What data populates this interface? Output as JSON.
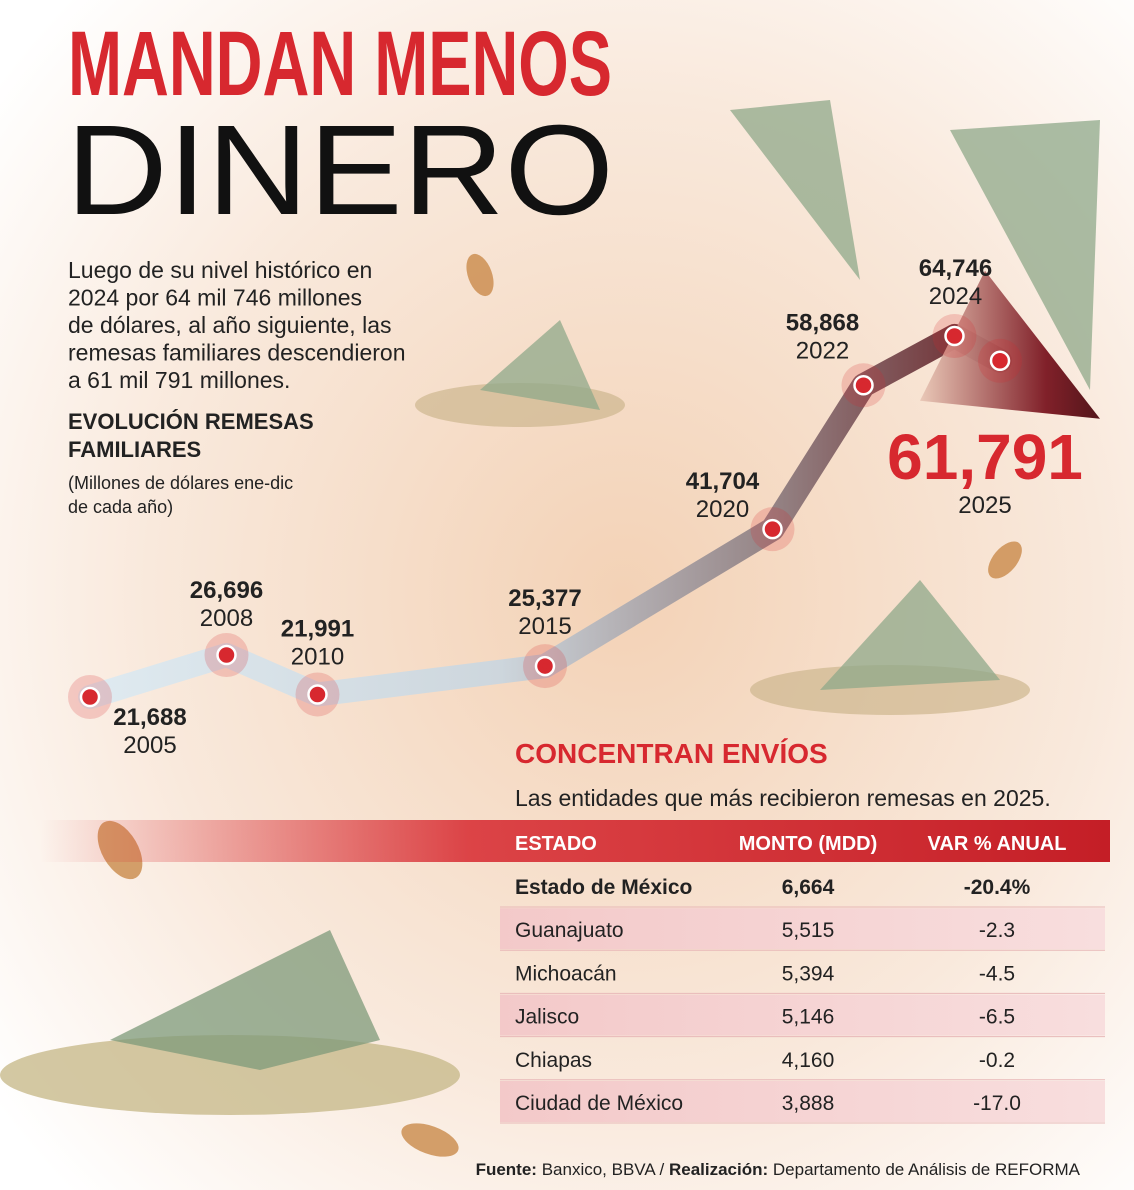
{
  "header": {
    "title": "MANDAN MENOS",
    "subtitle": "DINERO",
    "intro": [
      "Luego de su nivel histórico en",
      "2024 por 64 mil 746 millones",
      "de dólares, al año siguiente, las",
      "remesas familiares descendieron",
      "a 61 mil 791 millones."
    ]
  },
  "chart_data": {
    "type": "line",
    "title": [
      "EVOLUCIÓN REMESAS",
      "FAMILIARES"
    ],
    "note": [
      "(Millones de dólares ene-dic",
      "de cada año)"
    ],
    "x": [
      2005,
      2008,
      2010,
      2015,
      2020,
      2022,
      2024,
      2025
    ],
    "values": [
      21688,
      26696,
      21991,
      25377,
      41704,
      58868,
      64746,
      61791
    ],
    "value_labels": [
      "21,688",
      "26,696",
      "21,991",
      "25,377",
      "41,704",
      "58,868",
      "64,746",
      "61,791"
    ],
    "color": "#d7282f"
  },
  "table": {
    "title": "CONCENTRAN ENVÍOS",
    "subtitle": "Las entidades que más recibieron remesas en 2025.",
    "columns": [
      "ESTADO",
      "MONTO (MDD)",
      "VAR % ANUAL"
    ],
    "rows": [
      [
        "Estado de México",
        "6,664",
        "-20.4%"
      ],
      [
        "Guanajuato",
        "5,515",
        "-2.3"
      ],
      [
        "Michoacán",
        "5,394",
        "-4.5"
      ],
      [
        "Jalisco",
        "5,146",
        "-6.5"
      ],
      [
        "Chiapas",
        "4,160",
        "-0.2"
      ],
      [
        "Ciudad de México",
        "3,888",
        "-17.0"
      ]
    ]
  },
  "footer": {
    "source_label": "Fuente:",
    "source": "Banxico, BBVA /",
    "credit_label": "Realización:",
    "credit": "Departamento de Análisis de REFORMA"
  }
}
